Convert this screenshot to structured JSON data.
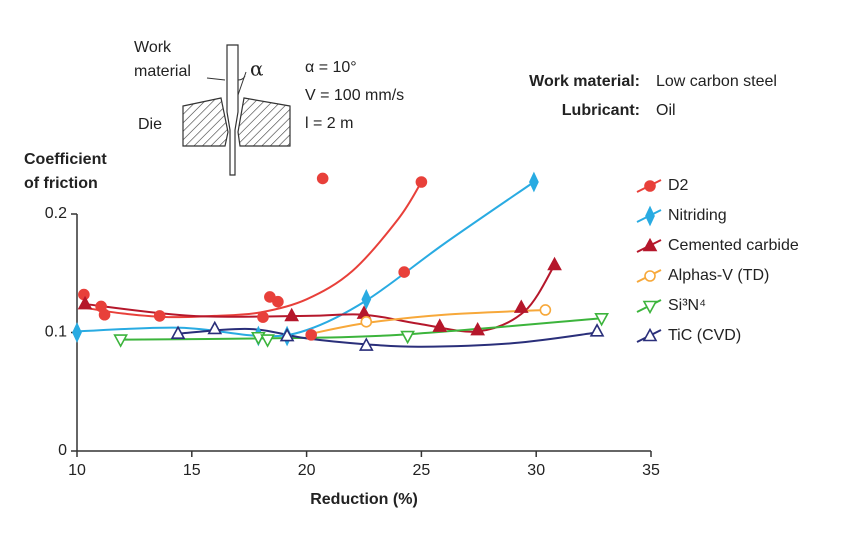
{
  "chart_data": {
    "type": "scatter",
    "y_label": [
      "Coefficient",
      "of friction"
    ],
    "x_label": "Reduction (%)",
    "xlim": [
      10,
      35
    ],
    "xticks": [
      10,
      15,
      20,
      25,
      30,
      35
    ],
    "ylim": [
      0,
      0.2
    ],
    "yticks": [
      0,
      0.1,
      0.2
    ],
    "legend": "right",
    "inset": {
      "work": [
        "Work",
        "material"
      ],
      "die": "Die",
      "angle_symbol": "α",
      "conditions": [
        "α = 10°",
        "V = 100 mm/s",
        "l = 2 m"
      ]
    },
    "info": [
      {
        "key": "Work material:",
        "value": "Low carbon steel"
      },
      {
        "key": "Lubricant:",
        "value": "Oil"
      }
    ],
    "series": [
      {
        "name": "D2",
        "color": "#e8403a",
        "marker": "circle",
        "filled": true,
        "x": [
          10.3,
          11.05,
          11.2,
          13.6,
          18.1,
          18.4,
          18.75,
          20.2,
          20.7,
          24.25,
          25
        ],
        "values": [
          0.132,
          0.122,
          0.115,
          0.114,
          0.113,
          0.13,
          0.126,
          0.098,
          0.23,
          0.151,
          0.227
        ],
        "fit": {
          "x": [
            10.3,
            12,
            14,
            16,
            18,
            20,
            22,
            24,
            25
          ],
          "values": [
            0.121,
            0.116,
            0.113,
            0.114,
            0.117,
            0.128,
            0.152,
            0.196,
            0.227
          ]
        }
      },
      {
        "name": "Nitriding",
        "color": "#29abe2",
        "marker": "diamond",
        "filled": true,
        "x": [
          10,
          17.9,
          19.15,
          22.6,
          29.9
        ],
        "values": [
          0.1,
          0.097,
          0.097,
          0.128,
          0.227
        ],
        "fit": {
          "x": [
            10,
            14.5,
            18,
            20,
            22.6,
            26,
            29.9
          ],
          "values": [
            0.101,
            0.104,
            0.097,
            0.102,
            0.127,
            0.175,
            0.227
          ]
        }
      },
      {
        "name": "Cemented carbide",
        "color": "#b5172b",
        "marker": "triangle-up",
        "filled": true,
        "x": [
          10.35,
          19.35,
          22.5,
          25.8,
          27.45,
          29.35,
          30.8
        ],
        "values": [
          0.124,
          0.114,
          0.116,
          0.105,
          0.102,
          0.121,
          0.157
        ],
        "fit": {
          "x": [
            10.35,
            15,
            20,
            22.5,
            25,
            27.5,
            29.5,
            30.8
          ],
          "values": [
            0.124,
            0.114,
            0.114,
            0.115,
            0.107,
            0.101,
            0.118,
            0.157
          ]
        }
      },
      {
        "name": "Alphas-V (TD)",
        "color": "#f7a83a",
        "marker": "circle",
        "filled": false,
        "x": [
          22.6,
          30.4
        ],
        "values": [
          0.109,
          0.119
        ],
        "fit": {
          "x": [
            20.2,
            22.6,
            26,
            30.4
          ],
          "values": [
            0.099,
            0.108,
            0.115,
            0.119
          ]
        }
      },
      {
        "name": "Si³N⁴",
        "color": "#3cb43c",
        "marker": "triangle-down",
        "filled": false,
        "x": [
          11.9,
          17.9,
          18.3,
          24.4,
          32.85
        ],
        "values": [
          0.094,
          0.096,
          0.094,
          0.097,
          0.112
        ],
        "fit": {
          "x": [
            11.9,
            18,
            24,
            32.85
          ],
          "values": [
            0.094,
            0.095,
            0.098,
            0.112
          ]
        }
      },
      {
        "name": "TiC (CVD)",
        "color": "#2a2f7a",
        "marker": "triangle-up",
        "filled": false,
        "x": [
          14.4,
          16,
          19.15,
          22.6,
          32.65
        ],
        "values": [
          0.099,
          0.103,
          0.097,
          0.089,
          0.101
        ],
        "fit": {
          "x": [
            14.4,
            17.5,
            20,
            22.6,
            25,
            29,
            32.65
          ],
          "values": [
            0.099,
            0.103,
            0.095,
            0.09,
            0.088,
            0.091,
            0.1
          ]
        }
      }
    ]
  }
}
